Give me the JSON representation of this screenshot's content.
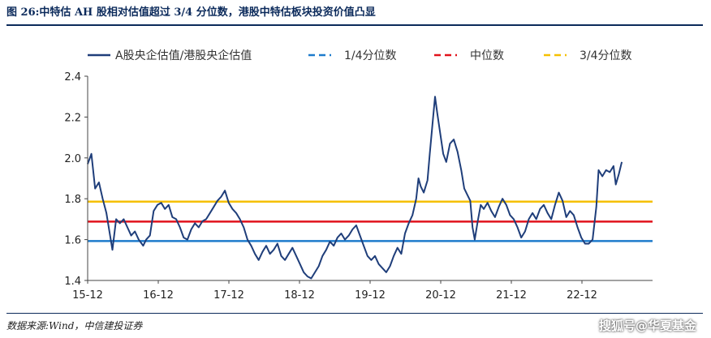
{
  "figure": {
    "title": "图 26:中特估 AH 股相对估值超过 3/4 分位数，港股中特估板块投资价值凸显",
    "source": "数据来源:Wind，中信建投证券",
    "watermark": "搜狐号@华夏基金"
  },
  "chart_data": {
    "type": "line",
    "title": "",
    "xlabel": "",
    "ylabel": "",
    "ylim": [
      1.4,
      2.4
    ],
    "yticks": [
      "1.4",
      "1.6",
      "1.8",
      "2.0",
      "2.2",
      "2.4"
    ],
    "xtick_labels": [
      "15-12",
      "16-12",
      "17-12",
      "18-12",
      "19-12",
      "20-12",
      "21-12",
      "22-12"
    ],
    "xlim": [
      2015.92,
      2023.45
    ],
    "legend_position": "top",
    "grid": false,
    "series": [
      {
        "name": "A股央企估值/港股央企估值",
        "color": "#1f3e7a",
        "style": "solid",
        "points": [
          [
            2015.92,
            1.97
          ],
          [
            2015.97,
            2.02
          ],
          [
            2016.02,
            1.85
          ],
          [
            2016.07,
            1.88
          ],
          [
            2016.12,
            1.8
          ],
          [
            2016.17,
            1.73
          ],
          [
            2016.21,
            1.64
          ],
          [
            2016.25,
            1.55
          ],
          [
            2016.3,
            1.7
          ],
          [
            2016.35,
            1.68
          ],
          [
            2016.4,
            1.7
          ],
          [
            2016.45,
            1.66
          ],
          [
            2016.5,
            1.62
          ],
          [
            2016.55,
            1.64
          ],
          [
            2016.6,
            1.6
          ],
          [
            2016.66,
            1.57
          ],
          [
            2016.7,
            1.6
          ],
          [
            2016.75,
            1.62
          ],
          [
            2016.8,
            1.74
          ],
          [
            2016.85,
            1.77
          ],
          [
            2016.9,
            1.78
          ],
          [
            2016.95,
            1.75
          ],
          [
            2017.0,
            1.77
          ],
          [
            2017.05,
            1.71
          ],
          [
            2017.1,
            1.7
          ],
          [
            2017.15,
            1.66
          ],
          [
            2017.2,
            1.61
          ],
          [
            2017.25,
            1.6
          ],
          [
            2017.3,
            1.65
          ],
          [
            2017.35,
            1.68
          ],
          [
            2017.4,
            1.66
          ],
          [
            2017.45,
            1.69
          ],
          [
            2017.5,
            1.7
          ],
          [
            2017.55,
            1.73
          ],
          [
            2017.6,
            1.76
          ],
          [
            2017.65,
            1.79
          ],
          [
            2017.7,
            1.81
          ],
          [
            2017.75,
            1.84
          ],
          [
            2017.8,
            1.78
          ],
          [
            2017.85,
            1.75
          ],
          [
            2017.9,
            1.73
          ],
          [
            2017.95,
            1.7
          ],
          [
            2018.0,
            1.66
          ],
          [
            2018.05,
            1.6
          ],
          [
            2018.1,
            1.57
          ],
          [
            2018.15,
            1.53
          ],
          [
            2018.2,
            1.5
          ],
          [
            2018.25,
            1.54
          ],
          [
            2018.3,
            1.57
          ],
          [
            2018.35,
            1.53
          ],
          [
            2018.4,
            1.55
          ],
          [
            2018.45,
            1.58
          ],
          [
            2018.5,
            1.52
          ],
          [
            2018.55,
            1.5
          ],
          [
            2018.6,
            1.53
          ],
          [
            2018.65,
            1.56
          ],
          [
            2018.7,
            1.52
          ],
          [
            2018.75,
            1.48
          ],
          [
            2018.8,
            1.44
          ],
          [
            2018.85,
            1.42
          ],
          [
            2018.9,
            1.41
          ],
          [
            2018.95,
            1.44
          ],
          [
            2019.0,
            1.47
          ],
          [
            2019.05,
            1.52
          ],
          [
            2019.1,
            1.55
          ],
          [
            2019.15,
            1.59
          ],
          [
            2019.2,
            1.57
          ],
          [
            2019.25,
            1.61
          ],
          [
            2019.3,
            1.63
          ],
          [
            2019.35,
            1.6
          ],
          [
            2019.4,
            1.62
          ],
          [
            2019.45,
            1.65
          ],
          [
            2019.5,
            1.67
          ],
          [
            2019.55,
            1.62
          ],
          [
            2019.6,
            1.57
          ],
          [
            2019.65,
            1.52
          ],
          [
            2019.7,
            1.5
          ],
          [
            2019.75,
            1.52
          ],
          [
            2019.8,
            1.48
          ],
          [
            2019.85,
            1.46
          ],
          [
            2019.9,
            1.44
          ],
          [
            2019.95,
            1.47
          ],
          [
            2020.0,
            1.52
          ],
          [
            2020.05,
            1.56
          ],
          [
            2020.1,
            1.53
          ],
          [
            2020.15,
            1.63
          ],
          [
            2020.2,
            1.68
          ],
          [
            2020.25,
            1.72
          ],
          [
            2020.3,
            1.8
          ],
          [
            2020.33,
            1.9
          ],
          [
            2020.36,
            1.86
          ],
          [
            2020.4,
            1.83
          ],
          [
            2020.45,
            1.89
          ],
          [
            2020.48,
            2.02
          ],
          [
            2020.52,
            2.18
          ],
          [
            2020.55,
            2.3
          ],
          [
            2020.58,
            2.22
          ],
          [
            2020.62,
            2.12
          ],
          [
            2020.66,
            2.02
          ],
          [
            2020.7,
            1.98
          ],
          [
            2020.75,
            2.07
          ],
          [
            2020.8,
            2.09
          ],
          [
            2020.85,
            2.03
          ],
          [
            2020.9,
            1.94
          ],
          [
            2020.94,
            1.85
          ],
          [
            2020.98,
            1.82
          ],
          [
            2021.02,
            1.79
          ],
          [
            2021.05,
            1.66
          ],
          [
            2021.08,
            1.6
          ],
          [
            2021.12,
            1.69
          ],
          [
            2021.16,
            1.77
          ],
          [
            2021.2,
            1.75
          ],
          [
            2021.25,
            1.78
          ],
          [
            2021.3,
            1.74
          ],
          [
            2021.35,
            1.71
          ],
          [
            2021.4,
            1.76
          ],
          [
            2021.45,
            1.8
          ],
          [
            2021.5,
            1.77
          ],
          [
            2021.55,
            1.72
          ],
          [
            2021.6,
            1.7
          ],
          [
            2021.65,
            1.66
          ],
          [
            2021.7,
            1.61
          ],
          [
            2021.75,
            1.64
          ],
          [
            2021.8,
            1.7
          ],
          [
            2021.85,
            1.73
          ],
          [
            2021.9,
            1.7
          ],
          [
            2021.95,
            1.75
          ],
          [
            2022.0,
            1.77
          ],
          [
            2022.05,
            1.73
          ],
          [
            2022.1,
            1.7
          ],
          [
            2022.15,
            1.77
          ],
          [
            2022.2,
            1.83
          ],
          [
            2022.25,
            1.79
          ],
          [
            2022.3,
            1.71
          ],
          [
            2022.35,
            1.74
          ],
          [
            2022.4,
            1.72
          ],
          [
            2022.45,
            1.66
          ],
          [
            2022.5,
            1.61
          ],
          [
            2022.55,
            1.58
          ],
          [
            2022.6,
            1.58
          ],
          [
            2022.65,
            1.6
          ],
          [
            2022.7,
            1.76
          ],
          [
            2022.73,
            1.94
          ],
          [
            2022.78,
            1.91
          ],
          [
            2022.83,
            1.94
          ],
          [
            2022.88,
            1.93
          ],
          [
            2022.93,
            1.96
          ],
          [
            2022.96,
            1.87
          ],
          [
            2023.0,
            1.92
          ],
          [
            2023.04,
            1.98
          ]
        ]
      },
      {
        "name": "1/4分位数",
        "color": "#1e7bcc",
        "style": "dashed",
        "value": 1.593
      },
      {
        "name": "中位数",
        "color": "#e1121b",
        "style": "dashed",
        "value": 1.688
      },
      {
        "name": "3/4分位数",
        "color": "#f5c000",
        "style": "dashed",
        "value": 1.786
      }
    ]
  }
}
